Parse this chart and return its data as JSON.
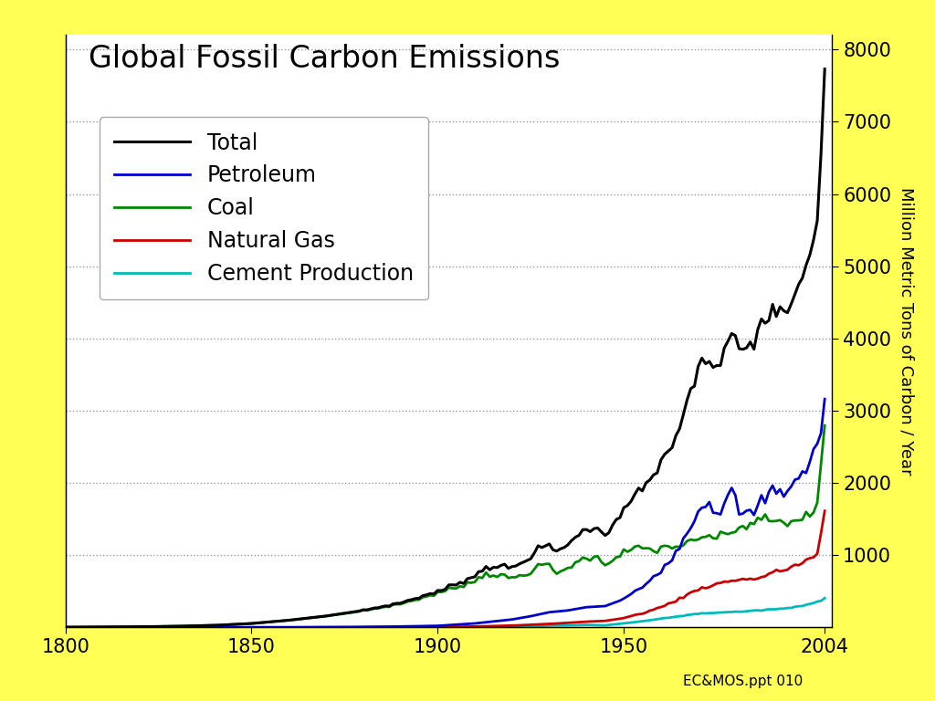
{
  "title": "Global Fossil Carbon Emissions",
  "ylabel": "Million Metric Tons of Carbon / Year",
  "xlim": [
    1800,
    2006
  ],
  "ylim": [
    0,
    8200
  ],
  "yticks": [
    1000,
    2000,
    3000,
    4000,
    5000,
    6000,
    7000,
    8000
  ],
  "xticks": [
    1800,
    1850,
    1900,
    1950,
    2004
  ],
  "background_color": "#ffffff",
  "outer_background": "#ffff55",
  "title_fontsize": 24,
  "legend_fontsize": 17,
  "axis_fontsize": 13,
  "tick_fontsize": 15,
  "watermark": "EC&MOS.ppt 010",
  "watermark_fontsize": 11,
  "series_colors": {
    "total": "#000000",
    "petroleum": "#0000cc",
    "coal": "#008800",
    "natural_gas": "#cc0000",
    "cement": "#00bbbb"
  },
  "series_linewidths": {
    "total": 2.2,
    "petroleum": 2.0,
    "coal": 2.0,
    "natural_gas": 2.0,
    "cement": 2.0
  },
  "legend_labels": [
    "Total",
    "Petroleum",
    "Coal",
    "Natural Gas",
    "Cement Production"
  ]
}
